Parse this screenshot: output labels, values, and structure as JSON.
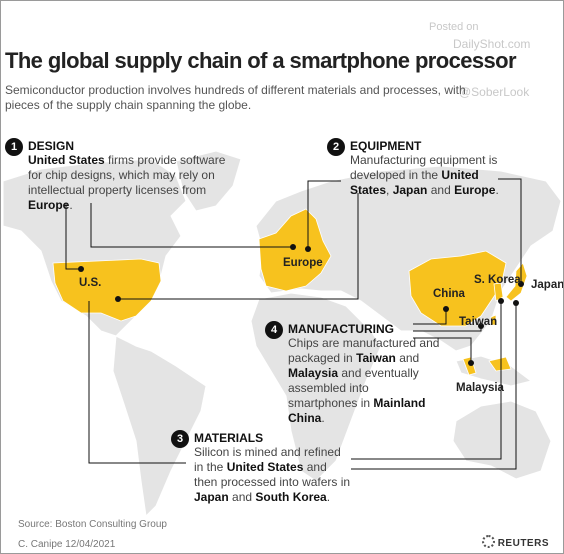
{
  "watermark": {
    "posted": "Posted on",
    "site": "DailyShot.com",
    "handle": "@SoberLook"
  },
  "header": {
    "title": "The global supply chain of a smartphone processor",
    "subtitle": "Semiconductor production involves hundreds of different materials and processes, with pieces of the supply chain spanning the globe."
  },
  "steps": [
    {
      "number": 1,
      "heading": "DESIGN",
      "runs": [
        {
          "text": "United States",
          "bold": true
        },
        {
          "text": " firms provide software for chip designs, which may rely on intellectual property licenses from ",
          "bold": false
        },
        {
          "text": "Europe",
          "bold": true
        },
        {
          "text": ".",
          "bold": false
        }
      ]
    },
    {
      "number": 2,
      "heading": "EQUIPMENT",
      "runs": [
        {
          "text": "Manufacturing equipment is developed in the ",
          "bold": false
        },
        {
          "text": "United States",
          "bold": true
        },
        {
          "text": ", ",
          "bold": false
        },
        {
          "text": "Japan",
          "bold": true
        },
        {
          "text": " and ",
          "bold": false
        },
        {
          "text": "Europe",
          "bold": true
        },
        {
          "text": ".",
          "bold": false
        }
      ]
    },
    {
      "number": 4,
      "heading": "MANUFACTURING",
      "runs": [
        {
          "text": "Chips are manufactured and packaged in ",
          "bold": false
        },
        {
          "text": "Taiwan",
          "bold": true
        },
        {
          "text": " and ",
          "bold": false
        },
        {
          "text": "Malaysia",
          "bold": true
        },
        {
          "text": " and eventually assembled into smartphones in ",
          "bold": false
        },
        {
          "text": "Mainland China",
          "bold": true
        },
        {
          "text": ".",
          "bold": false
        }
      ]
    },
    {
      "number": 3,
      "heading": "MATERIALS",
      "runs": [
        {
          "text": "Silicon is mined and refined in the ",
          "bold": false
        },
        {
          "text": "United States",
          "bold": true
        },
        {
          "text": " and then processed into wafers in ",
          "bold": false
        },
        {
          "text": "Japan",
          "bold": true
        },
        {
          "text": " and ",
          "bold": false
        },
        {
          "text": "South Korea",
          "bold": true
        },
        {
          "text": ".",
          "bold": false
        }
      ]
    }
  ],
  "map_labels": [
    "U.S.",
    "Europe",
    "China",
    "S. Korea",
    "Japan",
    "Taiwan",
    "Malaysia"
  ],
  "footer": {
    "source": "Source: Boston Consulting Group",
    "credit": "C. Canipe 12/04/2021",
    "logo": "REUTERS"
  }
}
